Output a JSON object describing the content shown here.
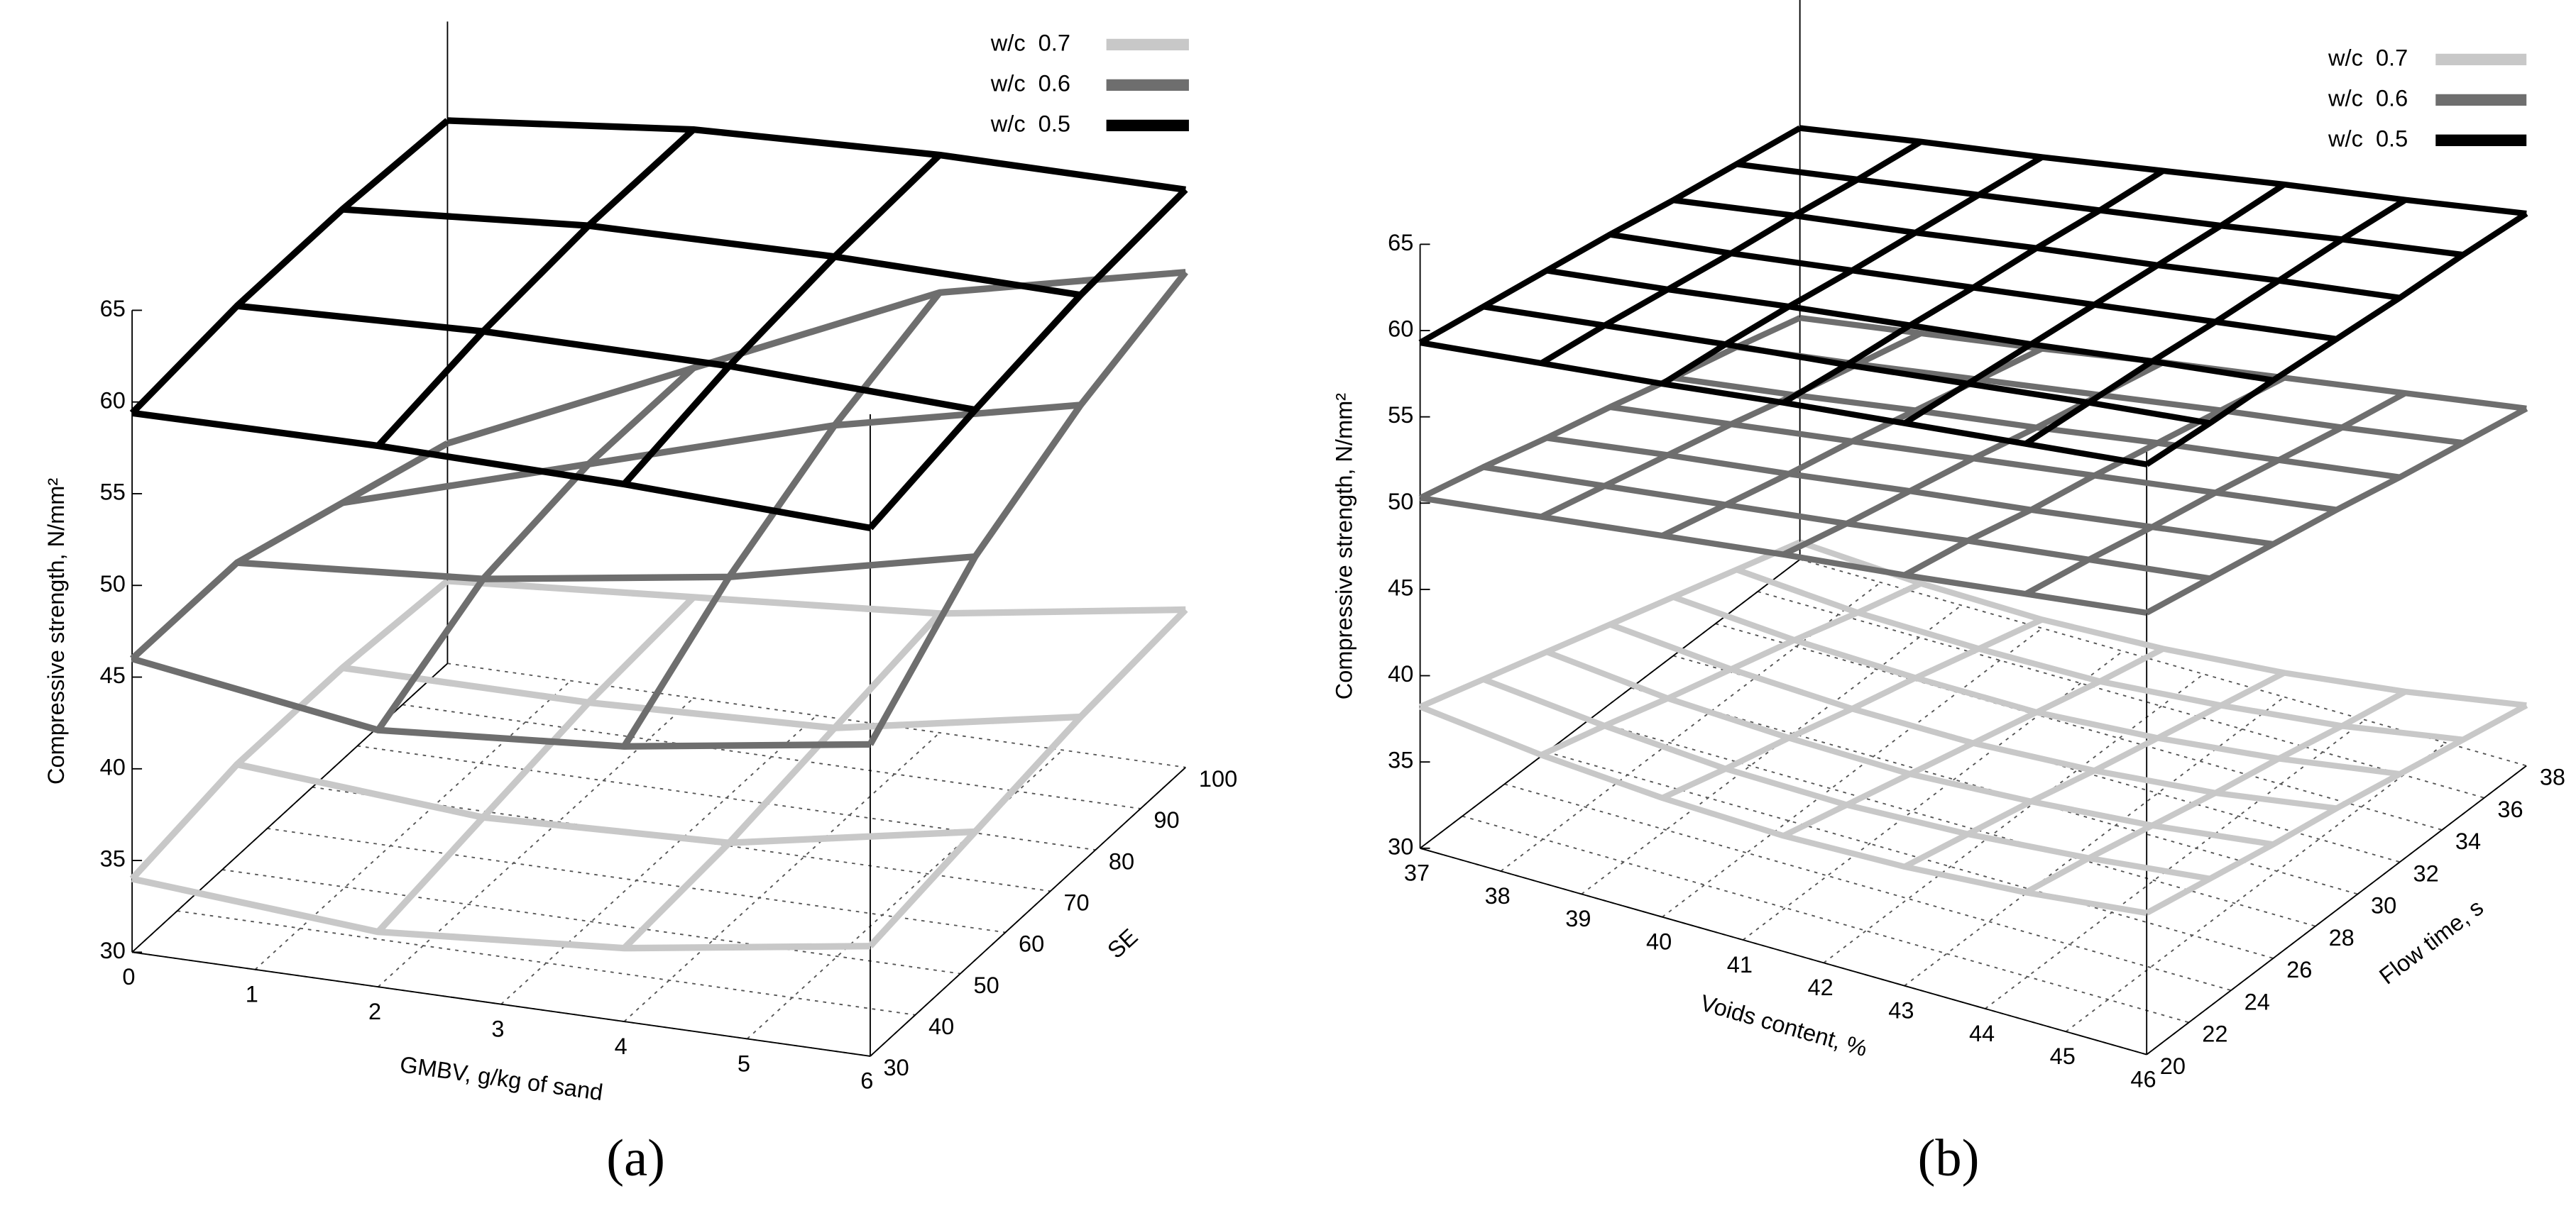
{
  "chart_data": [
    {
      "type": "surface",
      "caption": "(a)",
      "x_label": "GMBV, g/kg of sand",
      "y_label": "SE",
      "z_label": "Compressive strength, N/mm²",
      "x": [
        0,
        2,
        4,
        6
      ],
      "y": [
        30,
        53.3,
        76.7,
        100
      ],
      "xlim": [
        0,
        6
      ],
      "ylim": [
        30,
        100
      ],
      "zlim": [
        30,
        65
      ],
      "xticks": [
        0,
        1,
        2,
        3,
        4,
        5,
        6
      ],
      "yticks": [
        30,
        40,
        50,
        60,
        70,
        80,
        90,
        100
      ],
      "zticks": [
        30,
        35,
        40,
        45,
        50,
        55,
        60,
        65
      ],
      "series": [
        {
          "name": "w/c  0.7",
          "color": "#c8c8c8",
          "values": [
            [
              34,
              33,
              34,
              36
            ],
            [
              35,
              34,
              34.5,
              37
            ],
            [
              35,
              35,
              35.5,
              38
            ],
            [
              34.5,
              35.5,
              36.5,
              38.6
            ]
          ]
        },
        {
          "name": "w/c  0.6",
          "color": "#6e6e6e",
          "values": [
            [
              46,
              44,
              45,
              47
            ],
            [
              46,
              47,
              49,
              52
            ],
            [
              44,
              48,
              52,
              55
            ],
            [
              42,
              48,
              54,
              57
            ]
          ]
        },
        {
          "name": "w/c  0.5",
          "color": "#000000",
          "values": [
            [
              59.4,
              59.5,
              59.3,
              58.8
            ],
            [
              60,
              60.5,
              60.5,
              60
            ],
            [
              60,
              61,
              61.2,
              61
            ],
            [
              59.6,
              61,
              61.5,
              61.5
            ]
          ]
        }
      ]
    },
    {
      "type": "surface",
      "caption": "(b)",
      "x_label": "Voids content, %",
      "y_label": "Flow time, s",
      "z_label": "Compressive strength, N/mm²",
      "x": [
        37,
        38.5,
        40,
        41.5,
        43,
        44.5,
        46
      ],
      "y": [
        20,
        23,
        26,
        29,
        32,
        35,
        38
      ],
      "xlim": [
        37,
        46
      ],
      "ylim": [
        20,
        38
      ],
      "zlim": [
        30,
        65
      ],
      "xticks": [
        37,
        38,
        39,
        40,
        41,
        42,
        43,
        44,
        45,
        46
      ],
      "yticks": [
        20,
        22,
        24,
        26,
        28,
        30,
        32,
        34,
        36,
        38
      ],
      "zticks": [
        30,
        35,
        40,
        45,
        50,
        55,
        60,
        65
      ],
      "series": [
        {
          "name": "w/c  0.7",
          "color": "#c8c8c8",
          "values": [
            [
              38.2,
              37.4,
              36.9,
              36.7,
              36.9,
              37.4,
              38.2
            ],
            [
              37.0,
              36.3,
              35.8,
              35.7,
              36.0,
              36.6,
              37.4
            ],
            [
              35.8,
              35.1,
              34.8,
              34.7,
              35.1,
              35.7,
              36.6
            ],
            [
              34.6,
              34.0,
              33.7,
              33.7,
              34.1,
              34.8,
              35.9
            ],
            [
              33.4,
              32.9,
              32.7,
              32.7,
              33.2,
              34.0,
              35.1
            ],
            [
              32.2,
              31.7,
              31.6,
              31.7,
              32.3,
              33.1,
              34.3
            ],
            [
              31.0,
              30.6,
              30.5,
              30.8,
              31.4,
              32.3,
              33.5
            ]
          ]
        },
        {
          "name": "w/c  0.6",
          "color": "#6e6e6e",
          "values": [
            [
              50.3,
              51.2,
              52.1,
              53.0,
              53.8,
              54.7,
              55.6
            ],
            [
              49.3,
              50.2,
              51.1,
              52.0,
              53.0,
              53.9,
              54.8
            ],
            [
              48.2,
              49.2,
              50.1,
              51.1,
              52.0,
              53.0,
              54.0
            ],
            [
              47.2,
              48.2,
              49.2,
              50.2,
              51.2,
              52.2,
              53.2
            ],
            [
              46.1,
              47.1,
              48.2,
              49.2,
              50.3,
              51.3,
              52.3
            ],
            [
              45.1,
              46.1,
              47.2,
              48.3,
              49.4,
              50.4,
              51.5
            ],
            [
              44.0,
              45.1,
              46.2,
              47.4,
              48.5,
              49.6,
              50.7
            ]
          ]
        },
        {
          "name": "w/c  0.5",
          "color": "#000000",
          "values": [
            [
              59.3,
              60.1,
              60.9,
              61.8,
              62.6,
              63.4,
              64.2
            ],
            [
              58.6,
              59.5,
              60.4,
              61.2,
              62.1,
              63.0,
              63.8
            ],
            [
              57.9,
              58.8,
              59.8,
              60.7,
              61.6,
              62.6,
              63.5
            ],
            [
              57.2,
              58.1,
              59.1,
              60.1,
              61.1,
              62.1,
              63.1
            ],
            [
              56.4,
              57.5,
              58.5,
              59.6,
              60.6,
              61.7,
              62.7
            ],
            [
              55.7,
              56.8,
              57.9,
              59.0,
              60.1,
              61.3,
              62.4
            ],
            [
              55.0,
              56.2,
              57.3,
              58.5,
              59.7,
              60.8,
              62.0
            ]
          ]
        }
      ]
    }
  ]
}
